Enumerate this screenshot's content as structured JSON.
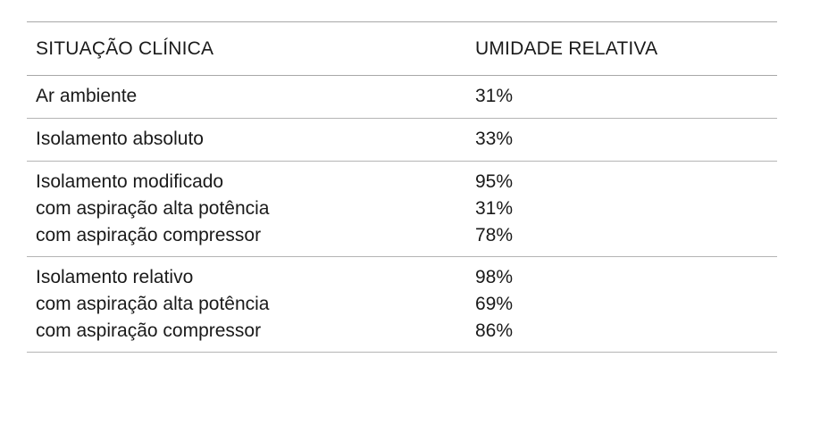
{
  "table": {
    "headers": [
      "SITUAÇÃO CLÍNICA",
      "UMIDADE RELATIVA"
    ],
    "rows": [
      {
        "situacao": [
          "Ar ambiente"
        ],
        "umidade": [
          "31%"
        ]
      },
      {
        "situacao": [
          "Isolamento absoluto"
        ],
        "umidade": [
          "33%"
        ]
      },
      {
        "situacao": [
          "Isolamento modificado",
          "com aspiração alta potência",
          "com aspiração compressor"
        ],
        "umidade": [
          "95%",
          "31%",
          "78%"
        ]
      },
      {
        "situacao": [
          "Isolamento relativo",
          "com aspiração alta potência",
          "com aspiração compressor"
        ],
        "umidade": [
          "98%",
          "69%",
          "86%"
        ]
      }
    ]
  }
}
